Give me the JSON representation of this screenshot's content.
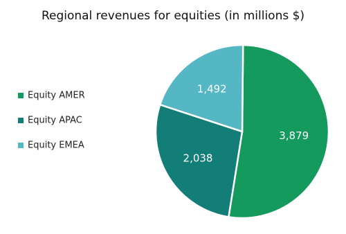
{
  "chart_data": {
    "type": "pie",
    "title": "Regional revenues for equities (in millions $)",
    "categories": [
      "Equity AMER",
      "Equity APAC",
      "Equity EMEA"
    ],
    "values": [
      3879,
      2038,
      1492
    ],
    "value_labels": [
      "3,879",
      "2,038",
      "1,492"
    ],
    "colors": [
      "#159a5e",
      "#137e78",
      "#55b6c4"
    ],
    "legend": "left"
  }
}
